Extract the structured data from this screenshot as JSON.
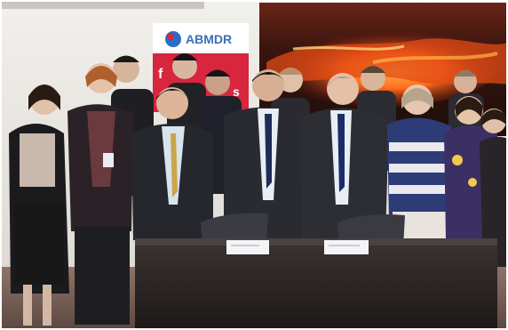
{
  "photo": {
    "banner": {
      "logo_text": "ABMDR",
      "tagline_left": "f",
      "tagline_right": "s"
    },
    "colors": {
      "wall": "#e7e4df",
      "painting_dark": "#3a1a12",
      "painting_glow": "#ff6a1c",
      "table": "#2c2624",
      "floor": "#7a6257",
      "banner_red": "#d7263d",
      "logo_blue": "#2b6cc4"
    }
  }
}
